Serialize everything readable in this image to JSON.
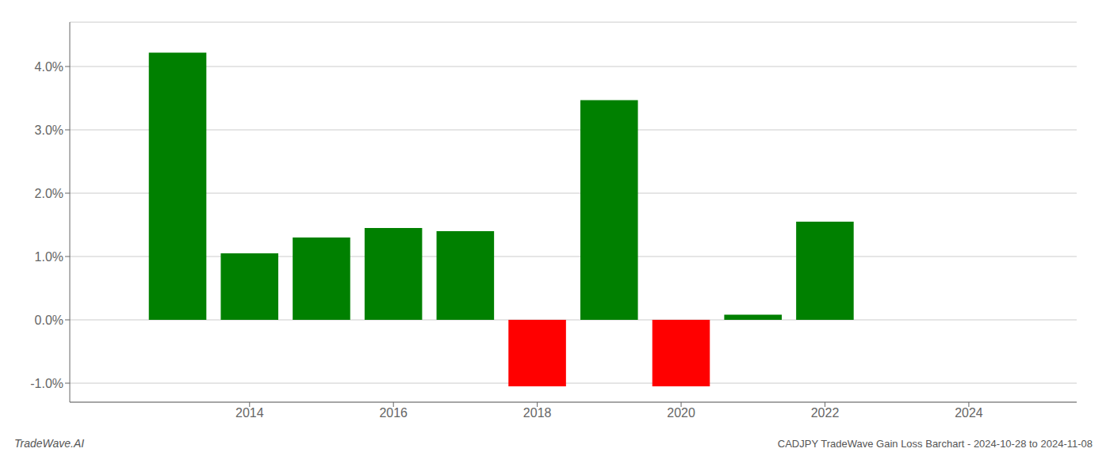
{
  "chart_data": {
    "type": "bar",
    "title": "CADJPY TradeWave Gain Loss Barchart - 2024-10-28 to 2024-11-08",
    "annotations": [
      "TradeWave.AI"
    ],
    "x": [
      2013,
      2014,
      2015,
      2016,
      2017,
      2018,
      2019,
      2020,
      2021,
      2022,
      2023
    ],
    "values": [
      0.0422,
      0.0105,
      0.013,
      0.0145,
      0.014,
      -0.0105,
      0.0347,
      -0.0105,
      0.0008,
      0.0155,
      0.0
    ],
    "colors": [
      "#008000",
      "#008000",
      "#008000",
      "#008000",
      "#008000",
      "#ff0000",
      "#008000",
      "#ff0000",
      "#008000",
      "#008000",
      "#008000"
    ],
    "xlim": [
      2011.5,
      2025.5
    ],
    "xticks": [
      2014,
      2016,
      2018,
      2020,
      2022,
      2024
    ],
    "ylim": [
      -0.013,
      0.047
    ],
    "yticks": [
      {
        "value": -0.01,
        "label": "-1.0%"
      },
      {
        "value": 0.0,
        "label": "0.0%"
      },
      {
        "value": 0.01,
        "label": "1.0%"
      },
      {
        "value": 0.02,
        "label": "2.0%"
      },
      {
        "value": 0.03,
        "label": "3.0%"
      },
      {
        "value": 0.04,
        "label": "4.0%"
      }
    ],
    "grid": "y"
  }
}
